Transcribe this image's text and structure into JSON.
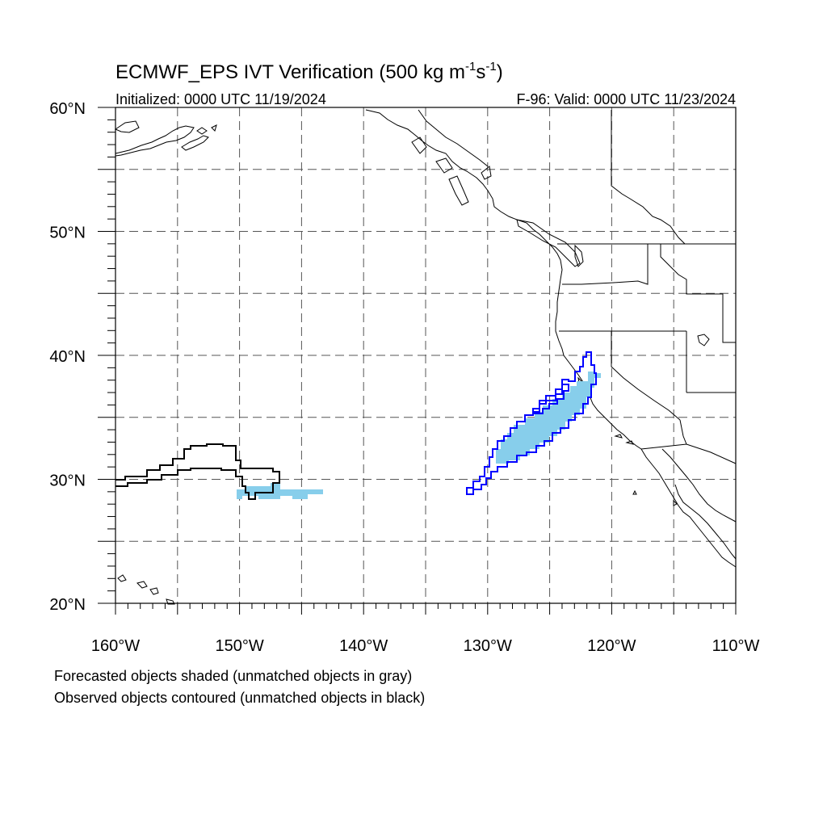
{
  "title": {
    "main": "ECMWF_EPS IVT Verification (500 kg m",
    "sup1": "-1",
    "mid": "s",
    "sup2": "-1",
    "close": ")"
  },
  "subtitle": {
    "left": "Initialized: 0000 UTC 11/19/2024",
    "right": "F-96: Valid: 0000 UTC 11/23/2024"
  },
  "axes": {
    "lon_range": [
      -160,
      -110
    ],
    "lat_range": [
      20,
      60
    ],
    "gridline_lons": [
      -155,
      -150,
      -145,
      -140,
      -135,
      -130,
      -125,
      -120,
      -115
    ],
    "gridline_lats": [
      25,
      30,
      35,
      40,
      45,
      50,
      55
    ],
    "lon_tick_labels": [
      {
        "lon": -160,
        "text": "160°W"
      },
      {
        "lon": -150,
        "text": "150°W"
      },
      {
        "lon": -140,
        "text": "140°W"
      },
      {
        "lon": -130,
        "text": "130°W"
      },
      {
        "lon": -120,
        "text": "120°W"
      },
      {
        "lon": -110,
        "text": "110°W"
      }
    ],
    "lat_tick_labels": [
      {
        "lat": 60,
        "text": "60°N"
      },
      {
        "lat": 50,
        "text": "50°N"
      },
      {
        "lat": 40,
        "text": "40°N"
      },
      {
        "lat": 30,
        "text": "30°N"
      },
      {
        "lat": 20,
        "text": "20°N"
      }
    ],
    "grid": "dashed"
  },
  "objects": {
    "forecast_matched_color": "#87ceeb",
    "observed_matched_color": "#0000ff",
    "observed_unmatched_color": "#000000",
    "forecast": [
      {
        "matched": true,
        "area": "subtropical Pacific",
        "lon_range": [
          -148.5,
          -143.5
        ],
        "lat_range": [
          28.5,
          29.5
        ]
      },
      {
        "matched": true,
        "area": "central California coast",
        "lon_range": [
          -129.5,
          -121
        ],
        "lat_range": [
          31.5,
          38.6
        ]
      }
    ],
    "observed": [
      {
        "matched": false,
        "area": "subtropical Pacific",
        "lon_range": [
          -160,
          -146
        ],
        "lat_range": [
          28.5,
          32.8
        ]
      },
      {
        "matched": true,
        "area": "central California coast",
        "lon_range": [
          -132,
          -121.5
        ],
        "lat_range": [
          29,
          39.8
        ]
      }
    ]
  },
  "legend": {
    "line1": "Forecasted objects shaded (unmatched objects in gray)",
    "line2": "Observed objects contoured (unmatched objects in black)"
  }
}
